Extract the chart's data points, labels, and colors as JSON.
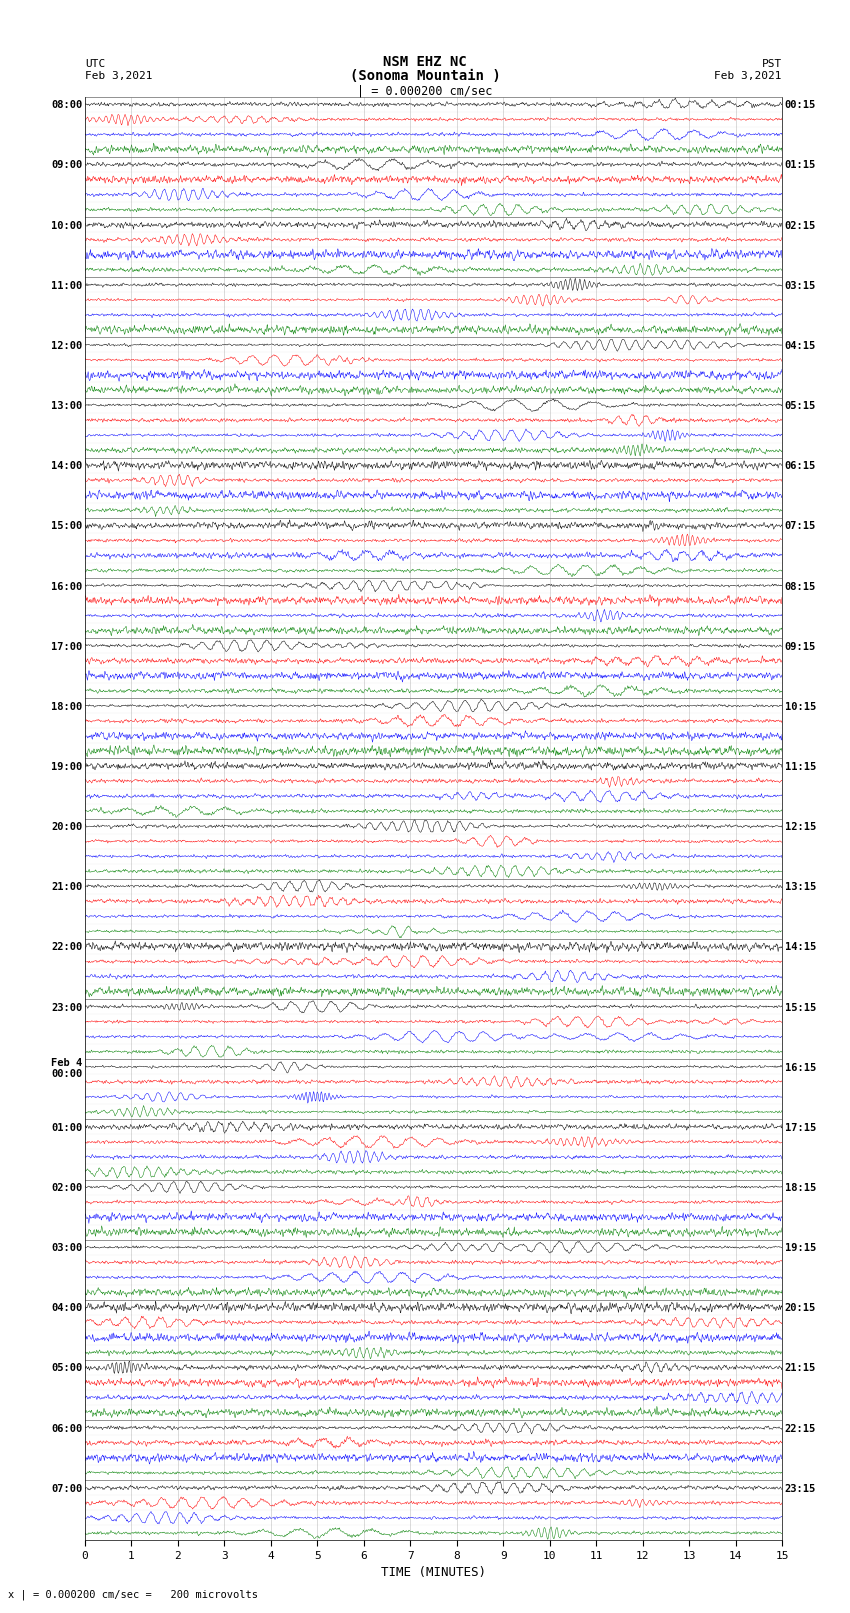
{
  "title_line1": "NSM EHZ NC",
  "title_line2": "(Sonoma Mountain )",
  "title_scale": "| = 0.000200 cm/sec",
  "left_label_top": "UTC",
  "left_label_date": "Feb 3,2021",
  "right_label_top": "PST",
  "right_label_date": "Feb 3,2021",
  "bottom_note": "x | = 0.000200 cm/sec =   200 microvolts",
  "xlabel": "TIME (MINUTES)",
  "utc_times": [
    "08:00",
    "09:00",
    "10:00",
    "11:00",
    "12:00",
    "13:00",
    "14:00",
    "15:00",
    "16:00",
    "17:00",
    "18:00",
    "19:00",
    "20:00",
    "21:00",
    "22:00",
    "23:00",
    "Feb 4\n00:00",
    "01:00",
    "02:00",
    "03:00",
    "04:00",
    "05:00",
    "06:00",
    "07:00"
  ],
  "pst_times": [
    "00:15",
    "01:15",
    "02:15",
    "03:15",
    "04:15",
    "05:15",
    "06:15",
    "07:15",
    "08:15",
    "09:15",
    "10:15",
    "11:15",
    "12:15",
    "13:15",
    "14:15",
    "15:15",
    "16:15",
    "17:15",
    "18:15",
    "19:15",
    "20:15",
    "21:15",
    "22:15",
    "23:15"
  ],
  "colors": [
    "black",
    "red",
    "blue",
    "green"
  ],
  "n_hours": 24,
  "n_traces_per_hour": 4,
  "x_min": 0,
  "x_max": 15,
  "x_ticks": [
    0,
    1,
    2,
    3,
    4,
    5,
    6,
    7,
    8,
    9,
    10,
    11,
    12,
    13,
    14,
    15
  ],
  "background_color": "white",
  "fig_width": 8.5,
  "fig_height": 16.13,
  "dpi": 100
}
